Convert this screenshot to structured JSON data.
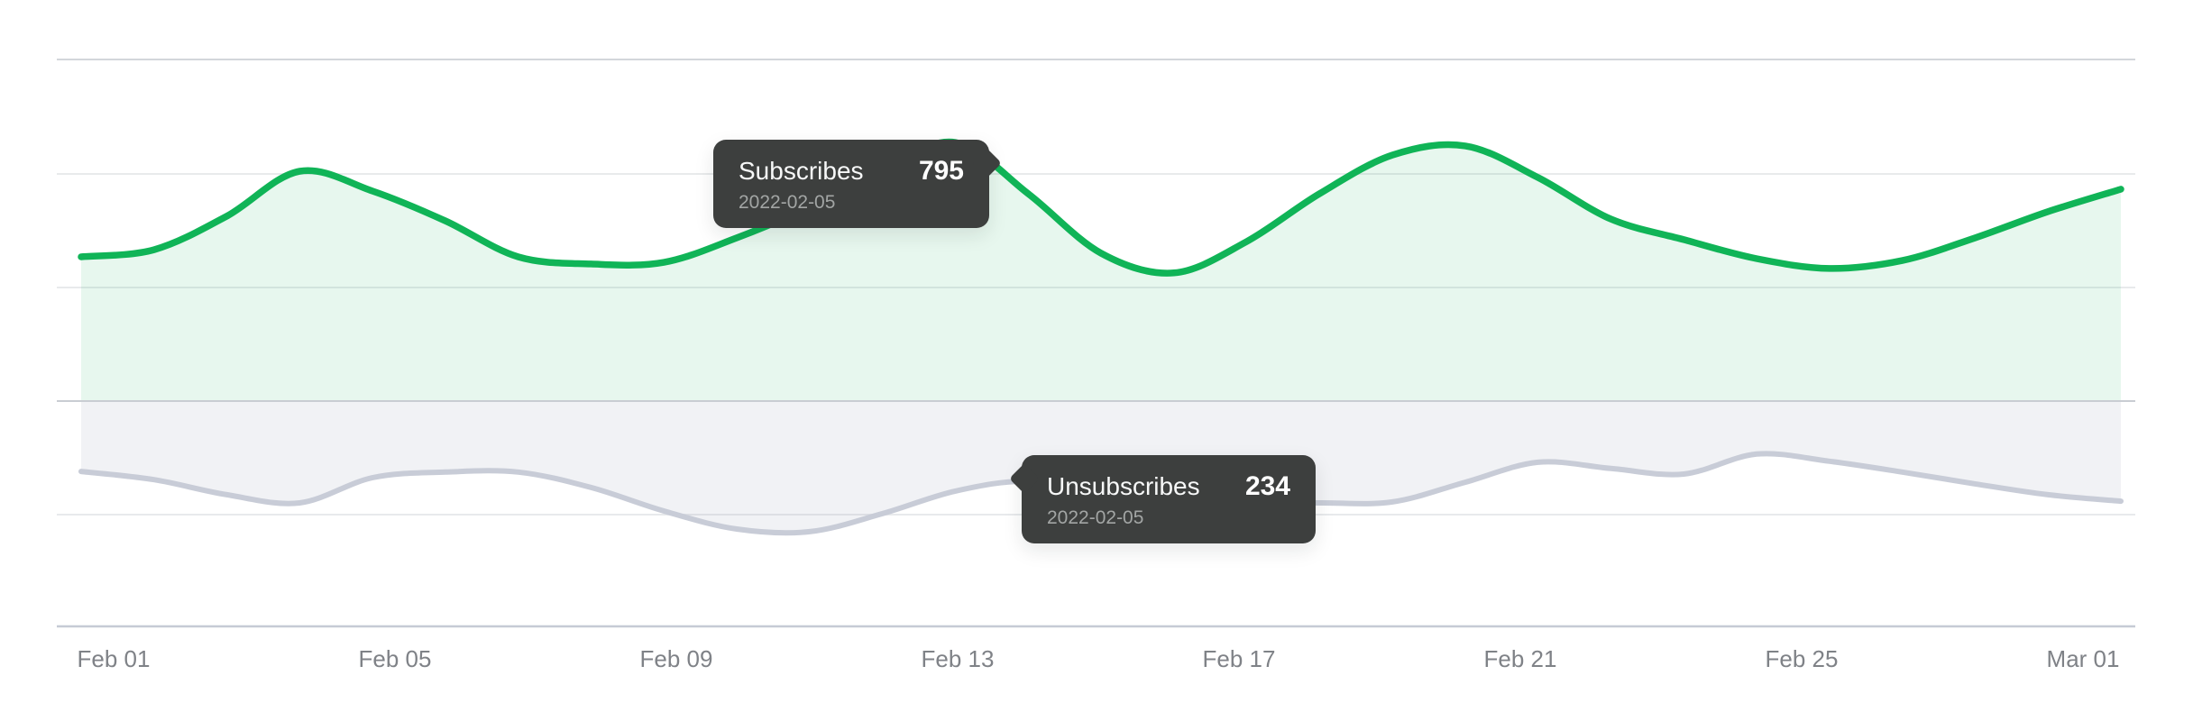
{
  "chart_data": {
    "type": "area",
    "title": "",
    "description": "Mirrored smooth area chart: Subscribes plotted upward from a shared baseline, Unsubscribes plotted downward (inverted) below it. No y-axis labels shown; grid on; no legend.",
    "x_interval": "daily",
    "x_start": "2022-02-01",
    "x_end": "2022-03-01",
    "x_tick_labels": [
      "Feb 01",
      "Feb 05",
      "Feb 09",
      "Feb 13",
      "Feb 17",
      "Feb 21",
      "Feb 25",
      "Mar 01"
    ],
    "grid": true,
    "legend_position": "none",
    "series": [
      {
        "name": "Subscribes",
        "direction": "up",
        "line_color": "#10b457",
        "fill_color": "rgba(16,180,87,0.10)",
        "values": [
          546,
          573,
          700,
          870,
          795,
          682,
          546,
          519,
          525,
          618,
          734,
          877,
          979,
          785,
          560,
          485,
          604,
          785,
          931,
          966,
          846,
          689,
          611,
          539,
          502,
          532,
          618,
          717,
          802
        ]
      },
      {
        "name": "Unsubscribes",
        "direction": "down",
        "line_color": "#c8ccd7",
        "fill_color": "rgba(145,155,180,0.13)",
        "values": [
          215,
          240,
          286,
          311,
          234,
          217,
          217,
          264,
          336,
          391,
          399,
          344,
          275,
          245,
          286,
          306,
          311,
          311,
          308,
          248,
          187,
          206,
          223,
          162,
          184,
          217,
          253,
          286,
          306
        ]
      }
    ],
    "tooltips": [
      {
        "series": "Subscribes",
        "value": "795",
        "date": "2022-02-05"
      },
      {
        "series": "Unsubscribes",
        "value": "234",
        "date": "2022-02-05"
      }
    ]
  },
  "colors": {
    "background": "#ffffff",
    "grid_light": "#e8eaec",
    "grid_top": "#d3d6db",
    "grid_baseline": "#c9cdd3",
    "axis_line": "#c6cbd5",
    "tick_label": "#7f8287",
    "tooltip_bg": "#3d3f3e",
    "tooltip_title": "#f7f8f8",
    "tooltip_value": "#ffffff",
    "tooltip_date": "#a2a5a4"
  }
}
